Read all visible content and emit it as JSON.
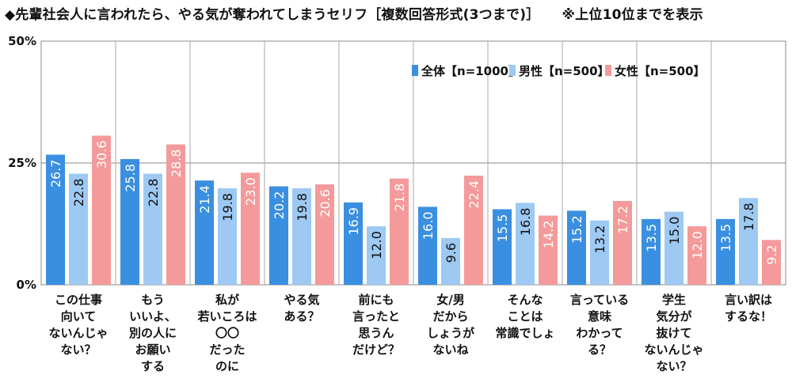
{
  "chart_data": {
    "type": "bar",
    "title": "◆先輩社会人に言われたら、やる気が奪われてしまうセリフ［複数回答形式(3つまで)］",
    "note": "※上位10位までを表示",
    "ylim": [
      0,
      50
    ],
    "yticks": [
      "0%",
      "25%",
      "50%"
    ],
    "ytick_values": [
      0,
      25,
      50
    ],
    "grid": true,
    "legend_position": "top-right",
    "categories": [
      [
        "この仕事",
        "向いて",
        "ないんじゃ",
        "ない？"
      ],
      [
        "もう",
        "いいよ、",
        "別の人に",
        "お願い",
        "する"
      ],
      [
        "私が",
        "若いころは",
        "〇〇",
        "だった",
        "のに"
      ],
      [
        "やる気",
        "ある？"
      ],
      [
        "前にも",
        "言ったと",
        "思うん",
        "だけど？"
      ],
      [
        "女/男",
        "だから",
        "しょうが",
        "ないね"
      ],
      [
        "そんな",
        "ことは",
        "常識でしょ"
      ],
      [
        "言っている",
        "意味",
        "わかって",
        "る？"
      ],
      [
        "学生",
        "気分が",
        "抜けて",
        "ないんじゃ",
        "ない？"
      ],
      [
        "言い訳は",
        "するな！"
      ]
    ],
    "series": [
      {
        "name": "全体【n=1000】",
        "color": "#3a8fe0",
        "values": [
          26.7,
          25.8,
          21.4,
          20.2,
          16.9,
          16.0,
          15.5,
          15.2,
          13.5,
          13.5
        ]
      },
      {
        "name": "男性【n=500】",
        "color": "#9dc9f2",
        "values": [
          22.8,
          22.8,
          19.8,
          19.8,
          12.0,
          9.6,
          16.8,
          13.2,
          15.0,
          17.8
        ]
      },
      {
        "name": "女性【n=500】",
        "color": "#f49a9a",
        "values": [
          30.6,
          28.8,
          23.0,
          20.6,
          21.8,
          22.4,
          14.2,
          17.2,
          12.0,
          9.2
        ]
      }
    ]
  }
}
